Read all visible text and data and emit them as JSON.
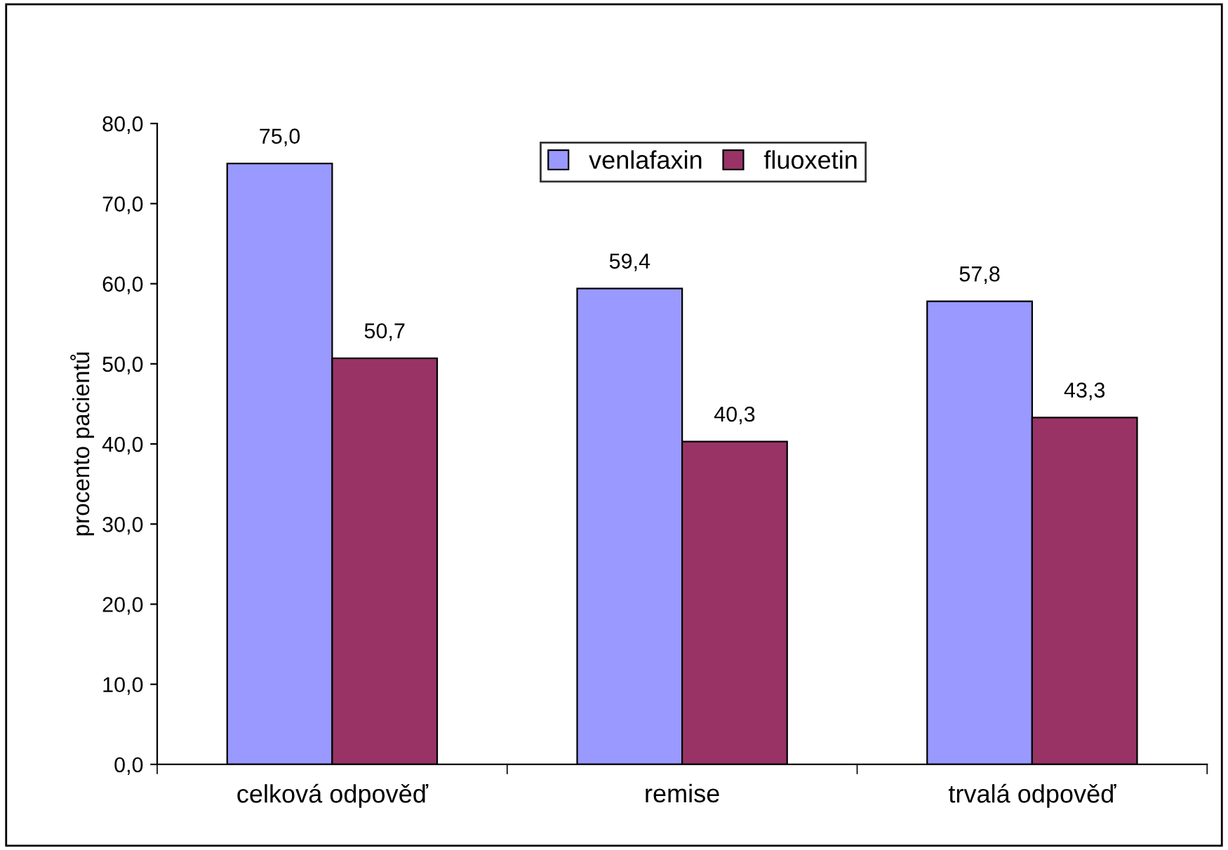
{
  "chart_data": {
    "type": "bar",
    "ylabel": "procento pacientů",
    "categories": [
      "celková odpověď",
      "remise",
      "trvalá odpověď"
    ],
    "series": [
      {
        "name": "venlafaxin",
        "color": "#9999ff",
        "values": [
          75.0,
          59.4,
          57.8
        ],
        "value_labels": [
          "75,0",
          "59,4",
          "57,8"
        ]
      },
      {
        "name": "fluoxetin",
        "color": "#993366",
        "values": [
          50.7,
          40.3,
          43.3
        ],
        "value_labels": [
          "50,7",
          "40,3",
          "43,3"
        ]
      }
    ],
    "ylim": [
      0,
      80
    ],
    "yticks": [
      {
        "value": 0,
        "label": "0,0"
      },
      {
        "value": 10,
        "label": "10,0"
      },
      {
        "value": 20,
        "label": "20,0"
      },
      {
        "value": 30,
        "label": "30,0"
      },
      {
        "value": 40,
        "label": "40,0"
      },
      {
        "value": 50,
        "label": "50,0"
      },
      {
        "value": 60,
        "label": "60,0"
      },
      {
        "value": 70,
        "label": "70,0"
      },
      {
        "value": 80,
        "label": "80,0"
      }
    ],
    "grid": false,
    "legend": "top"
  }
}
